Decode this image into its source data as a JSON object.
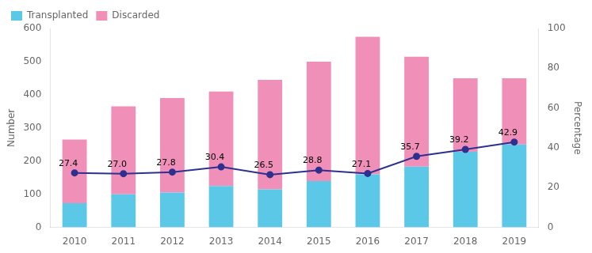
{
  "chart_data": {
    "type": "bar",
    "stacked": true,
    "grid": false,
    "legend": "upper left",
    "categories": [
      "2010",
      "2011",
      "2012",
      "2013",
      "2014",
      "2015",
      "2016",
      "2017",
      "2018",
      "2019"
    ],
    "ylabel": "Number",
    "y2label": "Percentage",
    "ylim": [
      0,
      600
    ],
    "yticks": [
      0,
      100,
      200,
      300,
      400,
      500,
      600
    ],
    "y2lim": [
      0,
      100
    ],
    "y2ticks": [
      0,
      20,
      40,
      60,
      80,
      100
    ],
    "series": [
      {
        "name": "Transplanted",
        "color": "#5BC8E8",
        "values": [
          73,
          100,
          105,
          125,
          115,
          140,
          160,
          183,
          228,
          250
        ]
      },
      {
        "name": "Discarded",
        "color": "#F090B8",
        "values": [
          192,
          265,
          285,
          285,
          330,
          360,
          415,
          332,
          222,
          200
        ]
      },
      {
        "type": "line",
        "axis": "y2",
        "color": "#2E3090",
        "marker": "o",
        "data_labels": true,
        "values": [
          27.4,
          27.0,
          27.8,
          30.4,
          26.5,
          28.8,
          27.1,
          35.7,
          39.2,
          42.9
        ],
        "value_labels": [
          "27.4",
          "27.0",
          "27.8",
          "30.4",
          "26.5",
          "28.8",
          "27.1",
          "35.7",
          "39.2",
          "42.9"
        ]
      }
    ]
  }
}
